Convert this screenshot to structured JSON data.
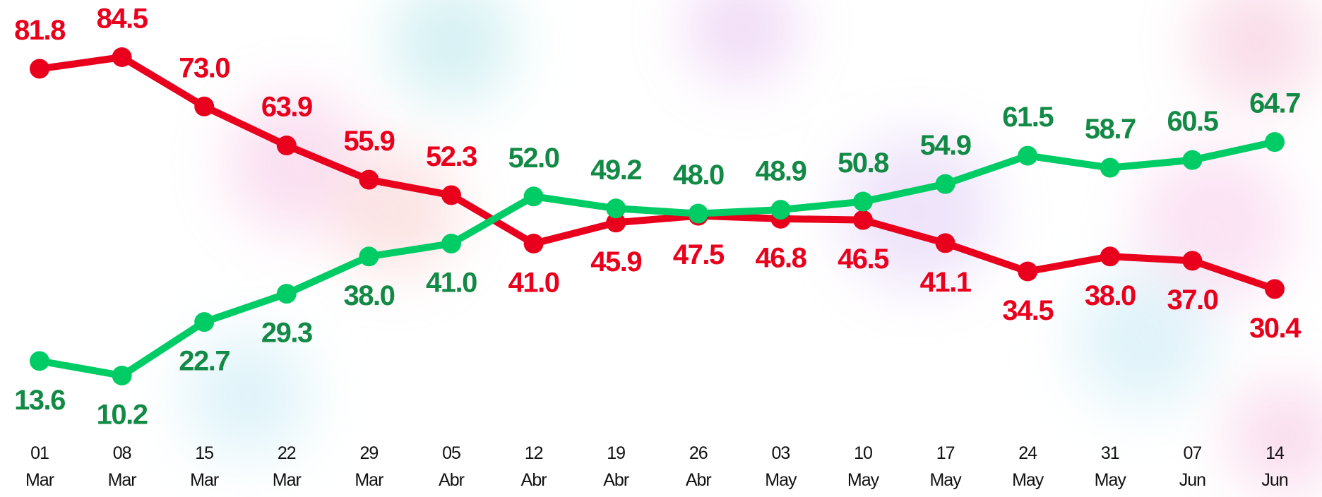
{
  "chart_data": {
    "type": "line",
    "categories": [
      "01 Mar",
      "08 Mar",
      "15 Mar",
      "22 Mar",
      "29 Mar",
      "05 Abr",
      "12 Abr",
      "19 Abr",
      "26 Abr",
      "03 May",
      "10 May",
      "17 May",
      "24 May",
      "31 May",
      "07 Jun",
      "14 Jun"
    ],
    "series": [
      {
        "color": "#e8001c",
        "values": [
          81.8,
          84.5,
          73.0,
          63.9,
          55.9,
          52.3,
          41.0,
          45.9,
          47.5,
          46.8,
          46.5,
          41.1,
          34.5,
          38.0,
          37.0,
          30.4
        ],
        "value_labels": [
          "81.8",
          "84.5",
          "73.0",
          "63.9",
          "55.9",
          "52.3",
          "41.0",
          "45.9",
          "47.5",
          "46.8",
          "46.5",
          "41.1",
          "34.5",
          "38.0",
          "37.0",
          "30.4"
        ]
      },
      {
        "color": "#00cc66",
        "label_color": "#128a45",
        "values": [
          13.6,
          10.2,
          22.7,
          29.3,
          38.0,
          41.0,
          52.0,
          49.2,
          48.0,
          48.9,
          50.8,
          54.9,
          61.5,
          58.7,
          60.5,
          64.7
        ],
        "value_labels": [
          "13.6",
          "10.2",
          "22.7",
          "29.3",
          "38.0",
          "41.0",
          "52.0",
          "49.2",
          "48.0",
          "48.9",
          "50.8",
          "54.9",
          "61.5",
          "58.7",
          "60.5",
          "64.7"
        ]
      }
    ]
  }
}
